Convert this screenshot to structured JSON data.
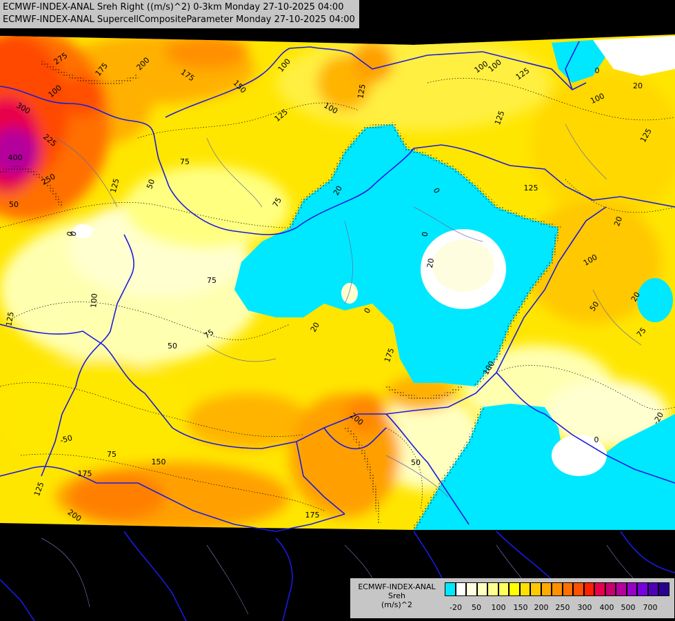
{
  "title": {
    "line1": "ECMWF-INDEX-ANAL Sreh Right ((m/s)^2) 0-3km Monday 27-10-2025 04:00",
    "line2": "ECMWF-INDEX-ANAL SupercellCompositeParameter Monday 27-10-2025 04:00"
  },
  "legend": {
    "line1": "ECMWF-INDEX-ANAL",
    "line2": "Sreh",
    "line3": "(m/s)^2",
    "colors": [
      "#00e8ff",
      "#ffffff",
      "#fffde0",
      "#ffffc0",
      "#ffff90",
      "#ffff60",
      "#ffff00",
      "#ffe000",
      "#ffc800",
      "#ffaa00",
      "#ff9000",
      "#ff7000",
      "#ff5000",
      "#ff2000",
      "#e8004c",
      "#c80070",
      "#b4009c",
      "#9600c8",
      "#7800dc",
      "#5000b4",
      "#2a0090"
    ],
    "ticks": [
      "-20",
      "50",
      "100",
      "150",
      "200",
      "250",
      "300",
      "400",
      "500",
      "700"
    ]
  },
  "contour_labels": [
    "275",
    "175",
    "200",
    "175",
    "150",
    "100",
    "125",
    "100",
    "50",
    "0",
    "100",
    "125",
    "125",
    "100",
    "125",
    "300",
    "100",
    "400",
    "225",
    "250",
    "125",
    "75",
    "50",
    "75",
    "0",
    "125",
    "20",
    "0",
    "0",
    "20",
    "125",
    "75",
    "100",
    "75",
    "125",
    "50",
    "20",
    "100",
    "20",
    "100",
    "0",
    "20",
    "50",
    "75",
    "-20",
    "0",
    "175",
    "200",
    "-50",
    "75",
    "150",
    "175",
    "125",
    "200",
    "175",
    "50",
    "100",
    "0",
    "20"
  ]
}
